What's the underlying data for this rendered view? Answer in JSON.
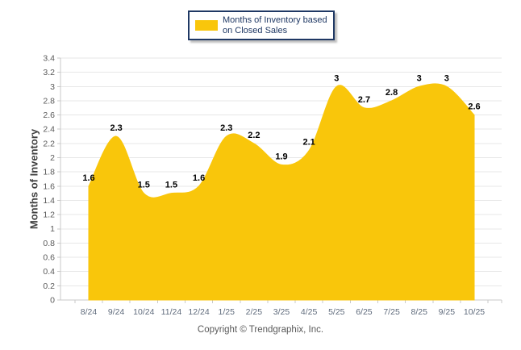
{
  "legend": {
    "label": "Months of Inventory based on Closed Sales"
  },
  "y_axis_title": "Months of Inventory",
  "footer": {
    "copyright": "Copyright © Trendgraphix, Inc."
  },
  "colors": {
    "series_fill": "#F9C60B",
    "legend_border": "#1F3864",
    "legend_text": "#1F3864",
    "gridline": "#E7E7E7",
    "axis_line": "#C9C9C9",
    "tick_mark": "#C9C9C9",
    "y_tick_text": "#595959",
    "x_tick_text": "#5F6B7C",
    "data_label_text": "#000000",
    "copyright_text": "#595959"
  },
  "chart_data": {
    "type": "area",
    "smooth": true,
    "title": "",
    "xlabel": "",
    "ylabel": "Months of Inventory",
    "legend_position": "top-center",
    "grid": true,
    "ylim": [
      0,
      3.4
    ],
    "ytick_step": 0.2,
    "ytick_labels": [
      "0",
      "0.2",
      "0.4",
      "0.6",
      "0.8",
      "1",
      "1.2",
      "1.4",
      "1.6",
      "1.8",
      "2",
      "2.2",
      "2.4",
      "2.6",
      "2.8",
      "3",
      "3.2",
      "3.4"
    ],
    "categories": [
      "8/24",
      "9/24",
      "10/24",
      "11/24",
      "12/24",
      "1/25",
      "2/25",
      "3/25",
      "4/25",
      "5/25",
      "6/25",
      "7/25",
      "8/25",
      "9/25",
      "10/25"
    ],
    "series": [
      {
        "name": "Months of Inventory based on Closed Sales",
        "values": [
          1.6,
          2.3,
          1.5,
          1.5,
          1.6,
          2.3,
          2.2,
          1.9,
          2.1,
          3,
          2.7,
          2.8,
          3,
          3,
          2.6
        ],
        "value_labels": [
          "1.6",
          "2.3",
          "1.5",
          "1.5",
          "1.6",
          "2.3",
          "2.2",
          "1.9",
          "2.1",
          "3",
          "2.7",
          "2.8",
          "3",
          "3",
          "2.6"
        ]
      }
    ]
  }
}
